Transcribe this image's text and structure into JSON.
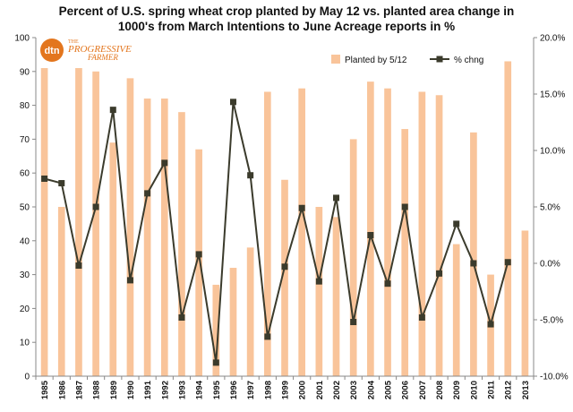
{
  "logo": {
    "dtn": "dtn",
    "the": "THE",
    "progressive": "PROGRESSIVE",
    "farmer": "FARMER"
  },
  "chart_data": {
    "type": "bar",
    "title_line1": "Percent of U.S. spring wheat crop planted by May 12 vs. planted area change in",
    "title_line2": "1000's from March Intentions to June Acreage reports in %",
    "categories": [
      "1985",
      "1986",
      "1987",
      "1988",
      "1989",
      "1990",
      "1991",
      "1992",
      "1993",
      "1994",
      "1995",
      "1996",
      "1997",
      "1998",
      "1999",
      "2000",
      "2001",
      "2002",
      "2003",
      "2004",
      "2005",
      "2006",
      "2007",
      "2008",
      "2009",
      "2010",
      "2011",
      "2012",
      "2013"
    ],
    "series": [
      {
        "name": "Planted by 5/12",
        "type": "bar",
        "axis": "left",
        "color": "#F9C49A",
        "values": [
          91,
          50,
          91,
          90,
          69,
          88,
          82,
          82,
          78,
          67,
          27,
          32,
          38,
          84,
          58,
          85,
          50,
          47,
          70,
          87,
          85,
          73,
          84,
          83,
          39,
          72,
          30,
          93,
          43
        ]
      },
      {
        "name": "% chng",
        "type": "line",
        "axis": "right",
        "color": "#3B3B2C",
        "marker": "square",
        "values": [
          7.5,
          7.1,
          -0.2,
          5.0,
          13.6,
          -1.5,
          6.2,
          8.9,
          -4.8,
          0.8,
          -8.8,
          14.3,
          7.8,
          -6.5,
          -0.3,
          4.9,
          -1.6,
          5.8,
          -5.2,
          2.5,
          -1.8,
          5.0,
          -4.8,
          -0.9,
          3.5,
          0.0,
          -5.4,
          0.1,
          null
        ]
      }
    ],
    "y_left": {
      "min": 0,
      "max": 100,
      "step": 10
    },
    "y_right": {
      "min": -10,
      "max": 20,
      "step": 5,
      "format": "percent1"
    },
    "legend": {
      "position": "top-right",
      "items": [
        "Planted by 5/12",
        "% chng"
      ]
    },
    "grid": false
  }
}
